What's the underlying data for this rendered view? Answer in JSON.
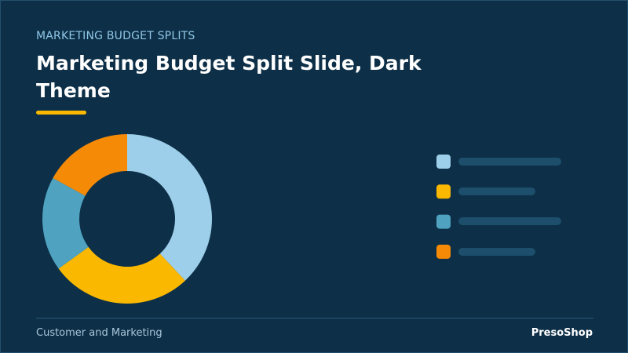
{
  "header": {
    "kicker": "MARKETING BUDGET SPLITS",
    "title": "Marketing Budget Split Slide, Dark Theme"
  },
  "chart_data": {
    "type": "donut",
    "values": [
      38,
      27,
      18,
      17
    ],
    "colors": [
      "#9dcfea",
      "#fbb800",
      "#4fa3c0",
      "#f58a07"
    ]
  },
  "footer": {
    "left": "Customer and Marketing",
    "right": "PresoShop"
  }
}
